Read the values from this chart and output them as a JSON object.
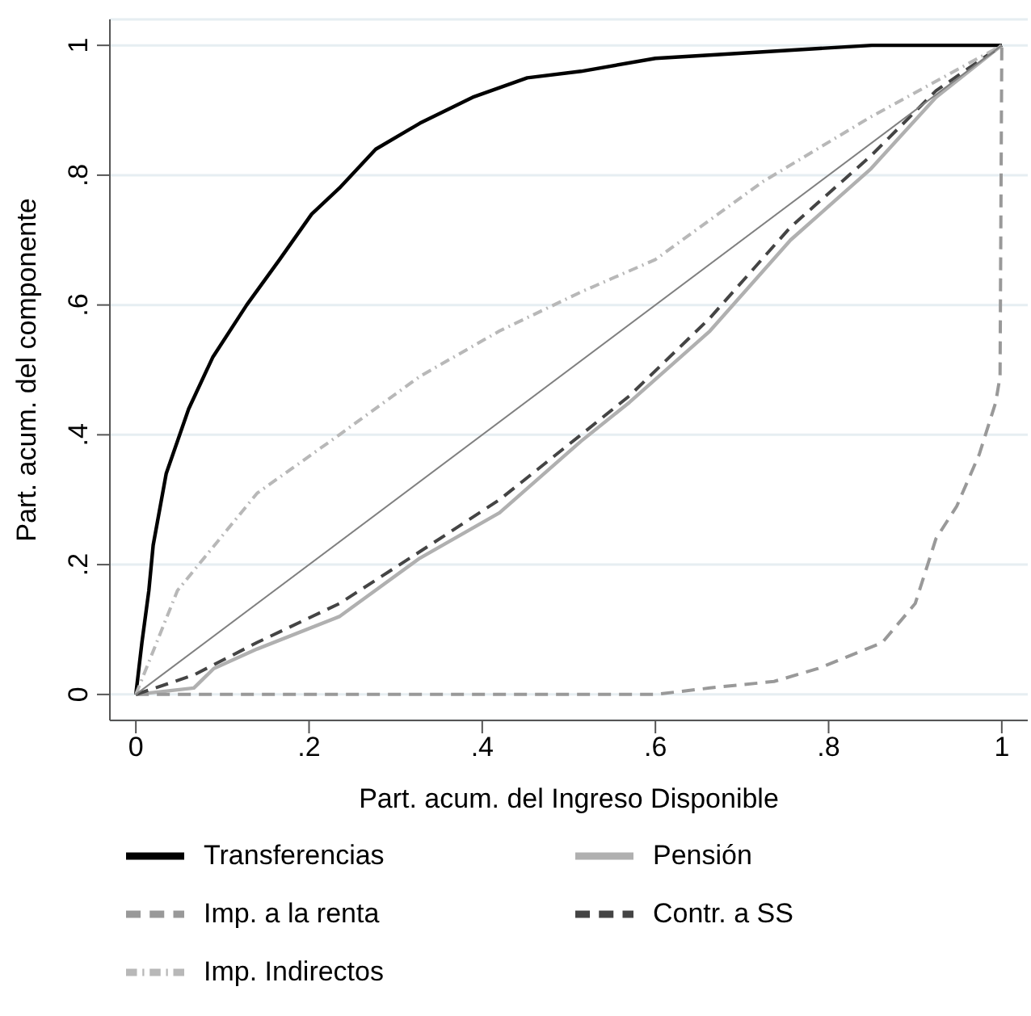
{
  "chart_data": {
    "type": "line",
    "xlabel": "Part. acum. del Ingreso Disponible",
    "ylabel": "Part. acum. del componente",
    "xlim": [
      -0.03,
      1.03
    ],
    "ylim": [
      -0.04,
      1.04
    ],
    "xticks": [
      {
        "value": 0,
        "label": "0"
      },
      {
        "value": 0.2,
        "label": ".2"
      },
      {
        "value": 0.4,
        "label": ".4"
      },
      {
        "value": 0.6,
        "label": ".6"
      },
      {
        "value": 0.8,
        "label": ".8"
      },
      {
        "value": 1,
        "label": "1"
      }
    ],
    "yticks": [
      {
        "value": 0,
        "label": "0"
      },
      {
        "value": 0.2,
        "label": ".2"
      },
      {
        "value": 0.4,
        "label": ".4"
      },
      {
        "value": 0.6,
        "label": ".6"
      },
      {
        "value": 0.8,
        "label": ".8"
      },
      {
        "value": 1,
        "label": "1"
      }
    ],
    "grid": "y",
    "legend": "bottom",
    "marker": "none",
    "series": [
      {
        "name": "Transferencias",
        "color": "#000000",
        "line_style": "solid",
        "x": [
          0,
          0.007,
          0.015,
          0.02,
          0.035,
          0.061,
          0.089,
          0.128,
          0.166,
          0.203,
          0.235,
          0.277,
          0.328,
          0.389,
          0.452,
          0.514,
          0.6,
          0.724,
          0.85,
          1
        ],
        "values": [
          0,
          0.08,
          0.16,
          0.23,
          0.34,
          0.44,
          0.52,
          0.6,
          0.67,
          0.74,
          0.78,
          0.84,
          0.88,
          0.92,
          0.95,
          0.96,
          0.98,
          0.99,
          1,
          1
        ]
      },
      {
        "name": "Pensión",
        "color": "#b0b0b0",
        "line_style": "solid",
        "x": [
          0,
          0.067,
          0.09,
          0.14,
          0.235,
          0.328,
          0.42,
          0.514,
          0.57,
          0.663,
          0.756,
          0.849,
          0.924,
          1
        ],
        "values": [
          0,
          0.01,
          0.04,
          0.07,
          0.12,
          0.21,
          0.28,
          0.39,
          0.45,
          0.56,
          0.7,
          0.81,
          0.92,
          1
        ]
      },
      {
        "name": "Imp. a la renta",
        "color": "#999999",
        "line_style": "dashed",
        "x": [
          0,
          0.6,
          0.663,
          0.737,
          0.788,
          0.862,
          0.9,
          0.924,
          0.948,
          0.974,
          0.993,
          0.998,
          1
        ],
        "values": [
          0,
          0,
          0.01,
          0.02,
          0.04,
          0.08,
          0.14,
          0.24,
          0.29,
          0.37,
          0.45,
          0.49,
          1
        ]
      },
      {
        "name": "Contr. a SS",
        "color": "#444444",
        "line_style": "dashed",
        "x": [
          0,
          0.067,
          0.14,
          0.235,
          0.328,
          0.42,
          0.514,
          0.57,
          0.663,
          0.756,
          0.849,
          0.924,
          1
        ],
        "values": [
          0,
          0.03,
          0.08,
          0.14,
          0.22,
          0.3,
          0.4,
          0.46,
          0.58,
          0.72,
          0.83,
          0.93,
          1
        ]
      },
      {
        "name": "Imp. Indirectos",
        "color": "#b8b8b8",
        "line_style": "dotted",
        "x": [
          0,
          0.048,
          0.14,
          0.235,
          0.328,
          0.42,
          0.514,
          0.6,
          0.724,
          0.849,
          1
        ],
        "values": [
          0,
          0.16,
          0.31,
          0.4,
          0.49,
          0.56,
          0.62,
          0.67,
          0.79,
          0.89,
          1
        ]
      },
      {
        "color": "#808080",
        "line_style": "solid",
        "x": [
          0,
          1
        ],
        "values": [
          0,
          1
        ]
      }
    ]
  }
}
